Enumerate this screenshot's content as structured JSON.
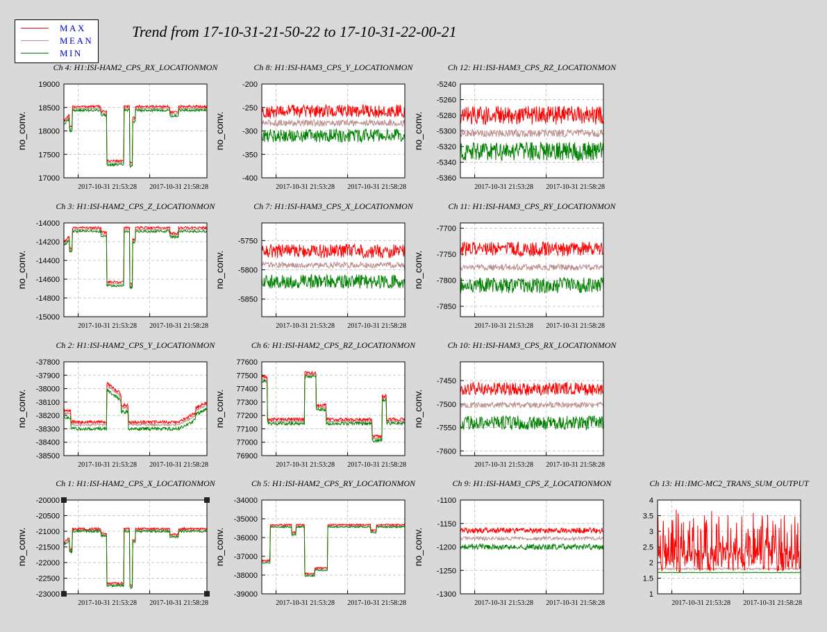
{
  "title": "Trend from 17-10-31-21-50-22 to 17-10-31-22-00-21",
  "legend": [
    {
      "label": "MAX",
      "color": "#ff0000"
    },
    {
      "label": "MEAN",
      "color": "#bc8f8f"
    },
    {
      "label": "MIN",
      "color": "#008000"
    }
  ],
  "colors": {
    "max": "#ff0000",
    "mean": "#bc8f8f",
    "min": "#008000",
    "background": "#d9d9d9",
    "plot_bg": "#ffffff",
    "grid": "#c8c8c8"
  },
  "chart_data": [
    {
      "type": "line",
      "title": "Ch 4: H1:ISI-HAM2_CPS_RX_LOCATIONMON",
      "ylabel": "no_conv.",
      "ylim": [
        17000,
        19000
      ],
      "yticks": [
        "19000",
        "18500",
        "18000",
        "17500",
        "17000"
      ],
      "xticks": [
        "2017-10-31 21:53:28",
        "2017-10-31 21:58:28"
      ],
      "grid": true,
      "profile": "step1",
      "series": [
        {
          "name": "MAX",
          "level": 18520,
          "spread": 25
        },
        {
          "name": "MEAN",
          "level": 18480,
          "spread": 15
        },
        {
          "name": "MIN",
          "level": 18440,
          "spread": 25
        }
      ]
    },
    {
      "type": "line",
      "title": "Ch 8: H1:ISI-HAM3_CPS_Y_LOCATIONMON",
      "ylabel": "no_conv.",
      "ylim": [
        -400,
        -200
      ],
      "yticks": [
        "-200",
        "-250",
        "-300",
        "-350",
        "-400"
      ],
      "xticks": [
        "2017-10-31 21:53:28",
        "2017-10-31 21:58:28"
      ],
      "grid": true,
      "profile": "noise",
      "series": [
        {
          "name": "MAX",
          "level": -258,
          "spread": 14
        },
        {
          "name": "MEAN",
          "level": -283,
          "spread": 7
        },
        {
          "name": "MIN",
          "level": -310,
          "spread": 14
        }
      ]
    },
    {
      "type": "line",
      "title": "Ch 12: H1:ISI-HAM3_CPS_RZ_LOCATIONMON",
      "ylabel": "no_conv.",
      "ylim": [
        -5360,
        -5240
      ],
      "yticks": [
        "-5240",
        "-5260",
        "-5280",
        "-5300",
        "-5320",
        "-5340",
        "-5360"
      ],
      "xticks": [
        "2017-10-31 21:53:28",
        "2017-10-31 21:58:28"
      ],
      "grid": true,
      "profile": "noise",
      "series": [
        {
          "name": "MAX",
          "level": -5280,
          "spread": 12
        },
        {
          "name": "MEAN",
          "level": -5303,
          "spread": 5
        },
        {
          "name": "MIN",
          "level": -5326,
          "spread": 12
        }
      ]
    },
    {
      "type": "line",
      "title": "Ch 3: H1:ISI-HAM2_CPS_Z_LOCATIONMON",
      "ylabel": "no_conv.",
      "ylim": [
        -15000,
        -14000
      ],
      "yticks": [
        "-14000",
        "-14200",
        "-14400",
        "-14600",
        "-14800",
        "-15000"
      ],
      "xticks": [
        "2017-10-31 21:53:28",
        "2017-10-31 21:58:28"
      ],
      "grid": true,
      "profile": "step1",
      "series": [
        {
          "name": "MAX",
          "level": -14050,
          "spread": 12
        },
        {
          "name": "MEAN",
          "level": -14070,
          "spread": 8
        },
        {
          "name": "MIN",
          "level": -14090,
          "spread": 12
        }
      ]
    },
    {
      "type": "line",
      "title": "Ch 7: H1:ISI-HAM3_CPS_X_LOCATIONMON",
      "ylabel": "no_conv.",
      "ylim": [
        -5880,
        -5720
      ],
      "yticks": [
        "-5750",
        "-5800",
        "-5850"
      ],
      "xticks": [
        "2017-10-31 21:53:28",
        "2017-10-31 21:58:28"
      ],
      "grid": true,
      "profile": "noise",
      "series": [
        {
          "name": "MAX",
          "level": -5768,
          "spread": 12
        },
        {
          "name": "MEAN",
          "level": -5792,
          "spread": 5
        },
        {
          "name": "MIN",
          "level": -5820,
          "spread": 12
        }
      ]
    },
    {
      "type": "line",
      "title": "Ch 11: H1:ISI-HAM3_CPS_RY_LOCATIONMON",
      "ylabel": "no_conv.",
      "ylim": [
        -7870,
        -7690
      ],
      "yticks": [
        "-7700",
        "-7750",
        "-7800",
        "-7850"
      ],
      "xticks": [
        "2017-10-31 21:53:28",
        "2017-10-31 21:58:28"
      ],
      "grid": true,
      "profile": "noise",
      "series": [
        {
          "name": "MAX",
          "level": -7740,
          "spread": 14
        },
        {
          "name": "MEAN",
          "level": -7775,
          "spread": 6
        },
        {
          "name": "MIN",
          "level": -7810,
          "spread": 15
        }
      ]
    },
    {
      "type": "line",
      "title": "Ch 2: H1:ISI-HAM2_CPS_Y_LOCATIONMON",
      "ylabel": "no_conv.",
      "ylim": [
        -38500,
        -37800
      ],
      "yticks": [
        "-37800",
        "-37900",
        "-38000",
        "-38100",
        "-38200",
        "-38300",
        "-38400",
        "-38500"
      ],
      "xticks": [
        "2017-10-31 21:53:28",
        "2017-10-31 21:58:28"
      ],
      "grid": true,
      "profile": "bump",
      "series": [
        {
          "name": "MAX",
          "level": -38250,
          "spread": 12
        },
        {
          "name": "MEAN",
          "level": -38270,
          "spread": 8
        },
        {
          "name": "MIN",
          "level": -38300,
          "spread": 12
        }
      ]
    },
    {
      "type": "line",
      "title": "Ch 6: H1:ISI-HAM2_CPS_RZ_LOCATIONMON",
      "ylabel": "no_conv.",
      "ylim": [
        76900,
        77600
      ],
      "yticks": [
        "77600",
        "77500",
        "77400",
        "77300",
        "77200",
        "77100",
        "77000",
        "76900"
      ],
      "xticks": [
        "2017-10-31 21:53:28",
        "2017-10-31 21:58:28"
      ],
      "grid": true,
      "profile": "bump2",
      "series": [
        {
          "name": "MAX",
          "level": 77170,
          "spread": 12
        },
        {
          "name": "MEAN",
          "level": 77155,
          "spread": 8
        },
        {
          "name": "MIN",
          "level": 77140,
          "spread": 12
        }
      ]
    },
    {
      "type": "line",
      "title": "Ch 10: H1:ISI-HAM3_CPS_RX_LOCATIONMON",
      "ylabel": "no_conv.",
      "ylim": [
        -7610,
        -7410
      ],
      "yticks": [
        "-7450",
        "-7500",
        "-7550",
        "-7600"
      ],
      "xticks": [
        "2017-10-31 21:53:28",
        "2017-10-31 21:58:28"
      ],
      "grid": true,
      "profile": "noise",
      "series": [
        {
          "name": "MAX",
          "level": -7468,
          "spread": 14
        },
        {
          "name": "MEAN",
          "level": -7502,
          "spread": 6
        },
        {
          "name": "MIN",
          "level": -7540,
          "spread": 15
        }
      ]
    },
    {
      "type": "line",
      "title": "Ch 1: H1:ISI-HAM2_CPS_X_LOCATIONMON",
      "ylabel": "no_conv.",
      "ylim": [
        -23000,
        -20000
      ],
      "yticks": [
        "-20000",
        "-20500",
        "-21000",
        "-21500",
        "-22000",
        "-22500",
        "-23000"
      ],
      "xticks": [
        "2017-10-31 21:53:28",
        "2017-10-31 21:58:28"
      ],
      "grid": true,
      "profile": "step1",
      "series": [
        {
          "name": "MAX",
          "level": -20920,
          "spread": 35
        },
        {
          "name": "MEAN",
          "level": -20960,
          "spread": 20
        },
        {
          "name": "MIN",
          "level": -21000,
          "spread": 35
        }
      ]
    },
    {
      "type": "line",
      "title": "Ch 5: H1:ISI-HAM2_CPS_RY_LOCATIONMON",
      "ylabel": "no_conv.",
      "ylim": [
        -39000,
        -34000
      ],
      "yticks": [
        "-34000",
        "-35000",
        "-36000",
        "-37000",
        "-38000",
        "-39000"
      ],
      "xticks": [
        "2017-10-31 21:53:28",
        "2017-10-31 21:58:28"
      ],
      "grid": true,
      "profile": "step2",
      "series": [
        {
          "name": "MAX",
          "level": -35320,
          "spread": 40
        },
        {
          "name": "MEAN",
          "level": -35380,
          "spread": 25
        },
        {
          "name": "MIN",
          "level": -35440,
          "spread": 40
        }
      ]
    },
    {
      "type": "line",
      "title": "Ch 9: H1:ISI-HAM3_CPS_Z_LOCATIONMON",
      "ylabel": "no_conv.",
      "ylim": [
        -1300,
        -1100
      ],
      "yticks": [
        "-1100",
        "-1150",
        "-1200",
        "-1250",
        "-1300"
      ],
      "xticks": [
        "2017-10-31 21:53:28",
        "2017-10-31 21:58:28"
      ],
      "grid": true,
      "profile": "noise",
      "series": [
        {
          "name": "MAX",
          "level": -1165,
          "spread": 6
        },
        {
          "name": "MEAN",
          "level": -1182,
          "spread": 4
        },
        {
          "name": "MIN",
          "level": -1200,
          "spread": 6
        }
      ]
    },
    {
      "type": "line",
      "title": "Ch 13: H1:IMC-MC2_TRANS_SUM_OUTPUT",
      "ylabel": "",
      "ylim": [
        1,
        4
      ],
      "yticks": [
        "4",
        "3.5",
        "3",
        "2.5",
        "2",
        "1.5",
        "1"
      ],
      "xticks": [
        "2017-10-31 21:53:28",
        "2017-10-31 21:58:28"
      ],
      "grid": true,
      "profile": "spiky",
      "series": [
        {
          "name": "MAX",
          "level": 2.1,
          "spread": 0.4
        },
        {
          "name": "MEAN",
          "level": 1.8,
          "spread": 0.03
        },
        {
          "name": "MIN",
          "level": 1.68,
          "spread": 0.01
        }
      ]
    }
  ]
}
